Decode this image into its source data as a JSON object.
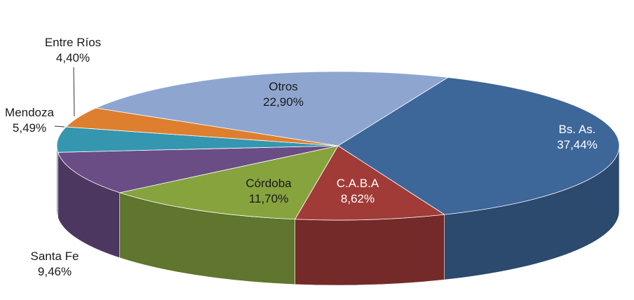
{
  "chart_data": {
    "type": "pie",
    "title": "",
    "slices": [
      {
        "label": "Bs. As.",
        "value_text": "37,44%",
        "value": 37.44,
        "color": "#3D6699"
      },
      {
        "label": "C.A.B.A",
        "value_text": "8,62%",
        "value": 8.62,
        "color": "#A13B38"
      },
      {
        "label": "Córdoba",
        "value_text": "11,70%",
        "value": 11.7,
        "color": "#86A33E"
      },
      {
        "label": "Santa Fe",
        "value_text": "9,46%",
        "value": 9.46,
        "color": "#6A4D85"
      },
      {
        "label": "Mendoza",
        "value_text": "5,49%",
        "value": 5.49,
        "color": "#3596AF"
      },
      {
        "label": "Entre Ríos",
        "value_text": "4,40%",
        "value": 4.4,
        "color": "#DD7F2E"
      },
      {
        "label": "Otros",
        "value_text": "22,90%",
        "value": 22.9,
        "color": "#8EA6CF"
      }
    ]
  }
}
